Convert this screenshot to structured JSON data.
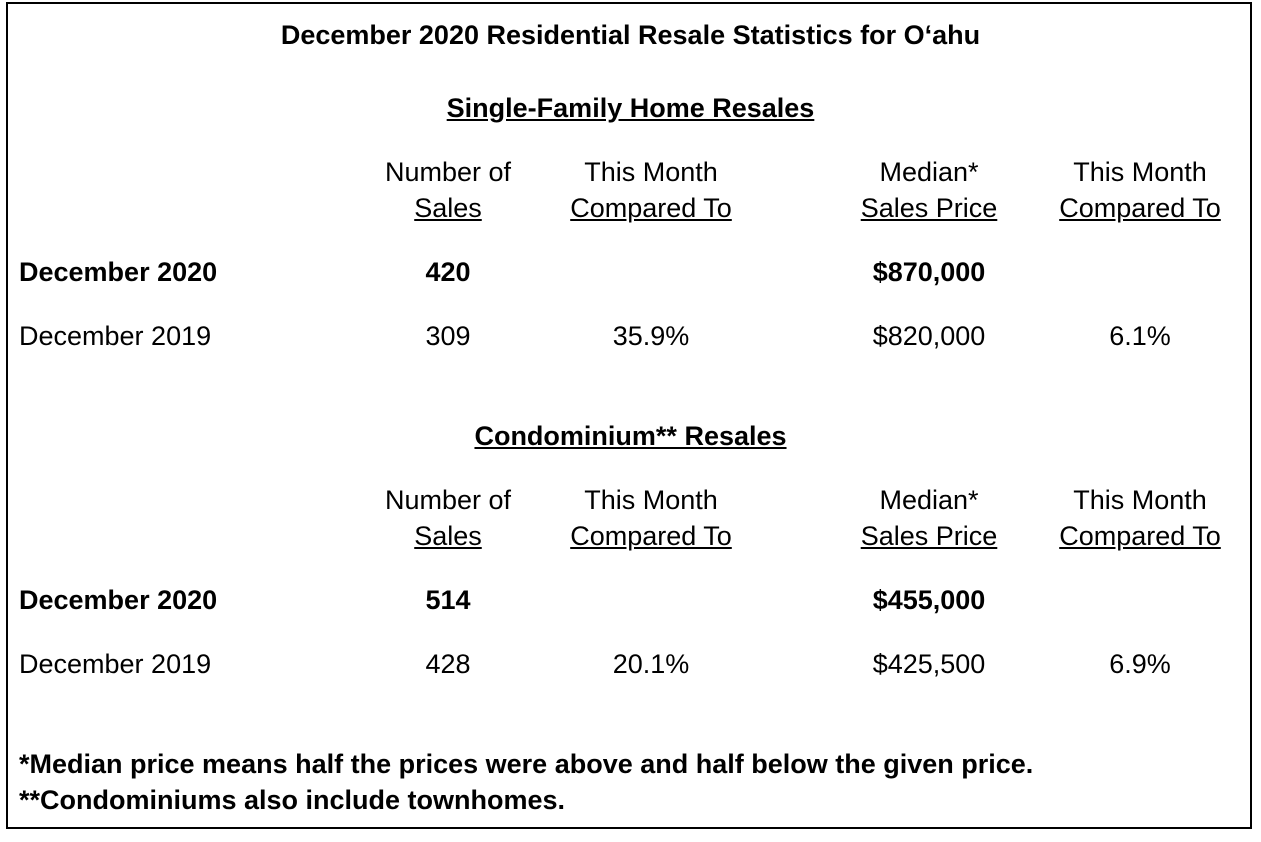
{
  "title": "December 2020 Residential Resale Statistics for O‘ahu",
  "columns": {
    "sales_line1": "Number of",
    "sales_line2": "Sales",
    "compare_line1": "This Month",
    "compare_line2": "Compared To",
    "median_line1": "Median*",
    "median_line2": "Sales Price"
  },
  "single_family": {
    "heading": "Single-Family Home Resales",
    "current": {
      "label": "December 2020",
      "sales": "420",
      "sales_change": "",
      "median": "$870,000",
      "median_change": ""
    },
    "previous": {
      "label": "December 2019",
      "sales": "309",
      "sales_change": "35.9%",
      "median": "$820,000",
      "median_change": "6.1%"
    }
  },
  "condo": {
    "heading": "Condominium** Resales",
    "current": {
      "label": "December 2020",
      "sales": "514",
      "sales_change": "",
      "median": "$455,000",
      "median_change": ""
    },
    "previous": {
      "label": "December 2019",
      "sales": "428",
      "sales_change": "20.1%",
      "median": "$425,500",
      "median_change": "6.9%"
    }
  },
  "footnotes": {
    "median": "*Median price means half the prices were above and half below the given price.",
    "condo": "**Condominiums also include townhomes."
  }
}
